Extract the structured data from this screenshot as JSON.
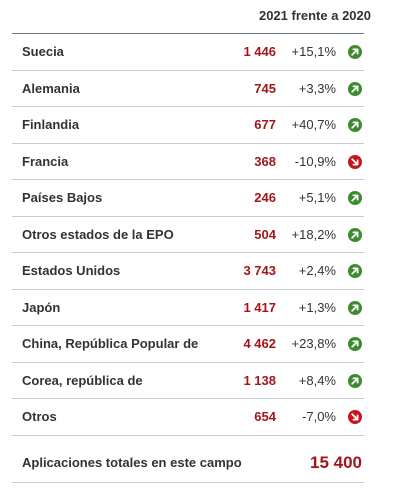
{
  "header": {
    "title": "2021 frente a 2020"
  },
  "rows": [
    {
      "country": "Suecia",
      "count": "1 446",
      "change": "+15,1%",
      "trend": "up"
    },
    {
      "country": "Alemania",
      "count": "745",
      "change": "+3,3%",
      "trend": "up"
    },
    {
      "country": "Finlandia",
      "count": "677",
      "change": "+40,7%",
      "trend": "up"
    },
    {
      "country": "Francia",
      "count": "368",
      "change": "-10,9%",
      "trend": "down"
    },
    {
      "country": "Países Bajos",
      "count": "246",
      "change": "+5,1%",
      "trend": "up"
    },
    {
      "country": "Otros estados de la EPO",
      "count": "504",
      "change": "+18,2%",
      "trend": "up"
    },
    {
      "country": "Estados Unidos",
      "count": "3 743",
      "change": "+2,4%",
      "trend": "up"
    },
    {
      "country": "Japón",
      "count": "1 417",
      "change": "+1,3%",
      "trend": "up"
    },
    {
      "country": "China, República Popular de",
      "count": "4 462",
      "change": "+23,8%",
      "trend": "up"
    },
    {
      "country": "Corea, república de",
      "count": "1 138",
      "change": "+8,4%",
      "trend": "up"
    },
    {
      "country": "Otros",
      "count": "654",
      "change": "-7,0%",
      "trend": "down"
    }
  ],
  "total": {
    "label": "Aplicaciones totales en este campo",
    "value": "15 400"
  },
  "colors": {
    "count_red": "#a3161b",
    "trend_up": "#3d8b2f",
    "trend_down": "#c4161c"
  }
}
